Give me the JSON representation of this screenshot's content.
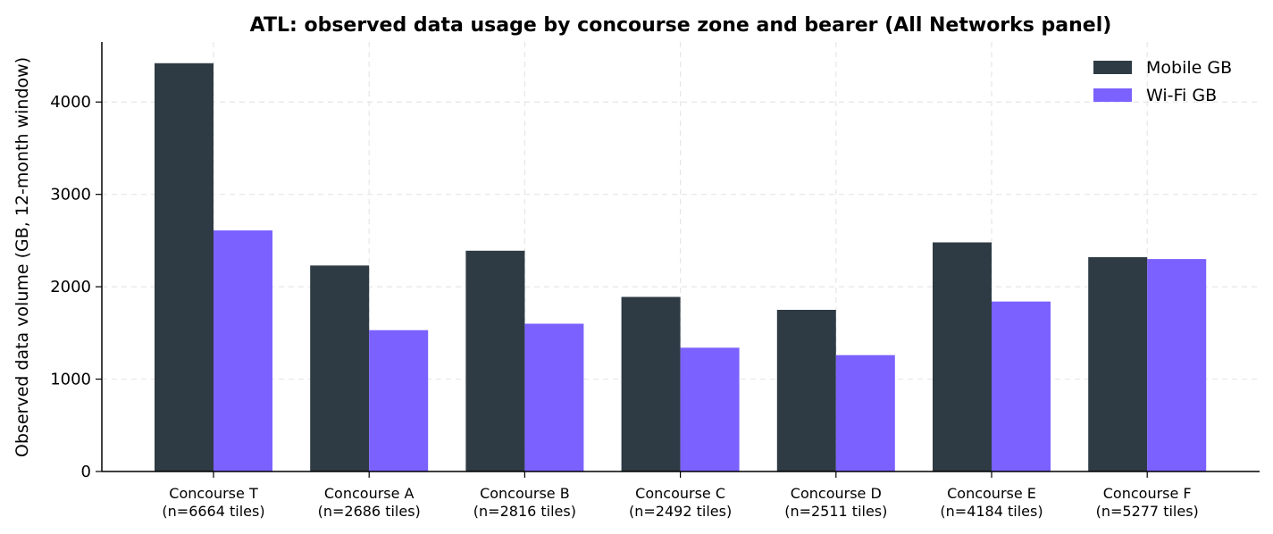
{
  "chart_data": {
    "type": "bar",
    "title": "ATL: observed data usage by concourse zone and bearer (All Networks panel)",
    "xlabel": "",
    "ylabel": "Observed data volume (GB, 12-month window)",
    "categories": [
      [
        "Concourse T",
        "(n=6664 tiles)"
      ],
      [
        "Concourse A",
        "(n=2686 tiles)"
      ],
      [
        "Concourse B",
        "(n=2816 tiles)"
      ],
      [
        "Concourse C",
        "(n=2492 tiles)"
      ],
      [
        "Concourse D",
        "(n=2511 tiles)"
      ],
      [
        "Concourse E",
        "(n=4184 tiles)"
      ],
      [
        "Concourse F",
        "(n=5277 tiles)"
      ]
    ],
    "series": [
      {
        "name": "Mobile GB",
        "color": "#2e3b44",
        "values": [
          4420,
          2230,
          2390,
          1890,
          1750,
          2480,
          2320
        ]
      },
      {
        "name": "Wi-Fi GB",
        "color": "#7b61ff",
        "values": [
          2610,
          1530,
          1600,
          1340,
          1260,
          1840,
          2300
        ]
      }
    ],
    "ylim": [
      0,
      4650
    ],
    "yticks": [
      0,
      1000,
      2000,
      3000,
      4000
    ],
    "grid": true,
    "legend_position": "top-right"
  }
}
